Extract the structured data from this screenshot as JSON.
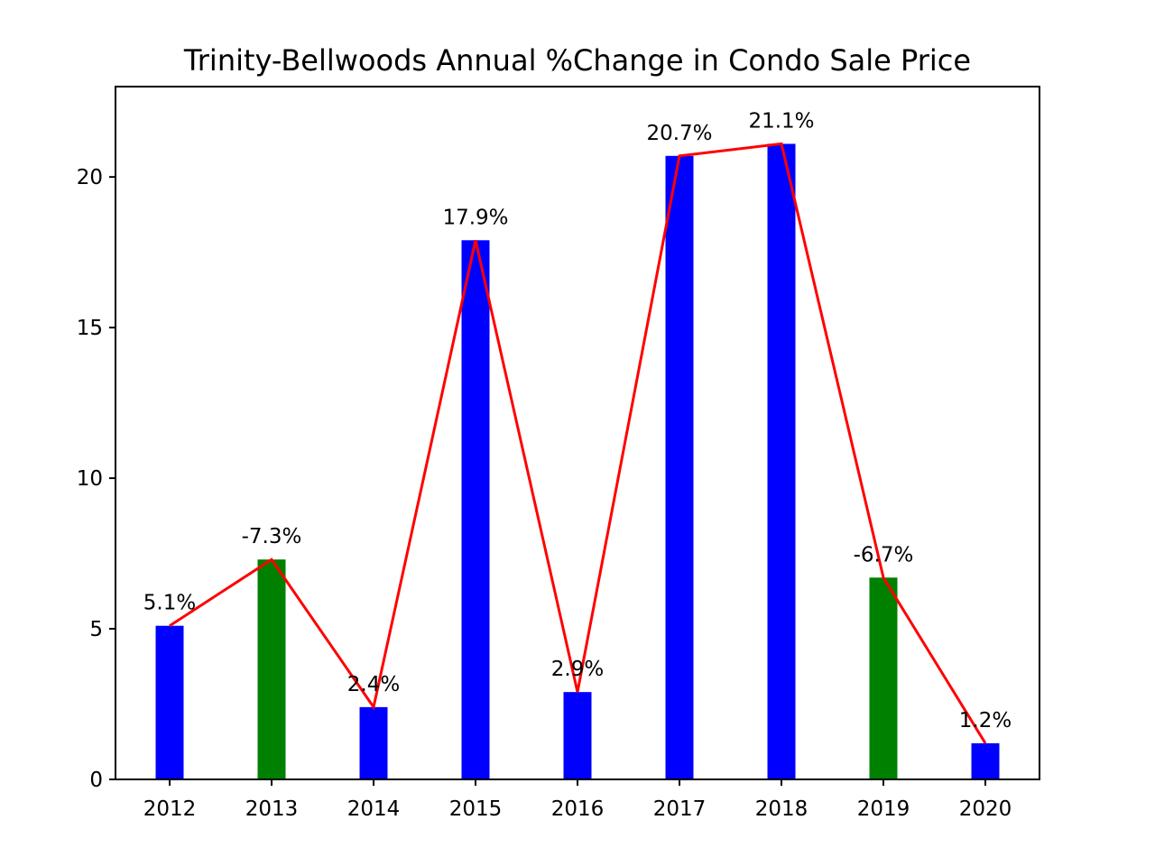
{
  "chart_data": {
    "type": "bar",
    "title": "Trinity-Bellwoods Annual %Change in Condo Sale Price",
    "xlabel": "",
    "ylabel": "",
    "categories": [
      "2012",
      "2013",
      "2014",
      "2015",
      "2016",
      "2017",
      "2018",
      "2019",
      "2020"
    ],
    "values": [
      5.1,
      7.3,
      2.4,
      17.9,
      2.9,
      20.7,
      21.1,
      6.7,
      1.2
    ],
    "data_labels": [
      "5.1%",
      "-7.3%",
      "2.4%",
      "17.9%",
      "2.9%",
      "20.7%",
      "21.1%",
      "-6.7%",
      "1.2%"
    ],
    "bar_colors": [
      "#0000ff",
      "#008000",
      "#0000ff",
      "#0000ff",
      "#0000ff",
      "#0000ff",
      "#0000ff",
      "#008000",
      "#0000ff"
    ],
    "line": {
      "values": [
        5.1,
        7.3,
        2.4,
        17.9,
        2.9,
        20.7,
        21.1,
        6.7,
        1.2
      ],
      "color": "#ff0000"
    },
    "ylim": [
      0,
      23
    ],
    "yticks": [
      0,
      5,
      10,
      15,
      20
    ],
    "grid": false,
    "legend": "none"
  }
}
